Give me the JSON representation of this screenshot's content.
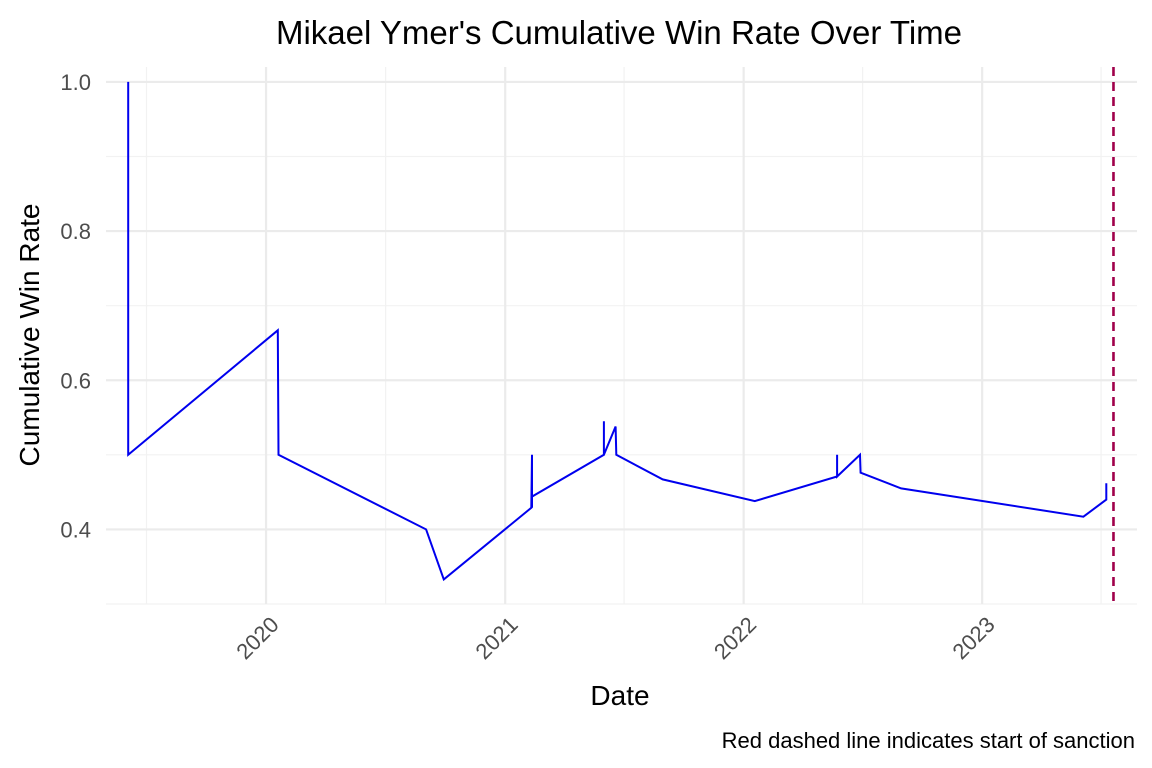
{
  "chart_data": {
    "type": "line",
    "title": "Mikael Ymer's Cumulative Win Rate Over Time",
    "xlabel": "Date",
    "ylabel": "Cumulative Win Rate",
    "caption": "Red dashed line indicates start of sanction",
    "xlim": [
      "2019-05-01",
      "2023-08-26"
    ],
    "ylim": [
      0.3,
      1.02
    ],
    "x_ticks": [
      "2020-01-01",
      "2021-01-01",
      "2022-01-01",
      "2023-01-01"
    ],
    "x_tick_labels": [
      "2020",
      "2021",
      "2022",
      "2023"
    ],
    "y_ticks": [
      0.4,
      0.6,
      0.8,
      1.0
    ],
    "y_tick_labels": [
      "0.4",
      "0.6",
      "0.8",
      "1.0"
    ],
    "grid": true,
    "legend": "none",
    "line_color": "#0000ee",
    "series": [
      {
        "x": [
          "2019-06-04",
          "2019-06-04",
          "2020-01-19",
          "2020-01-20",
          "2020-09-02",
          "2020-09-29",
          "2021-02-10",
          "2021-02-11",
          "2021-02-11",
          "2021-02-11",
          "2021-06-01",
          "2021-06-01",
          "2021-06-01",
          "2021-06-19",
          "2021-06-20",
          "2021-08-30",
          "2022-01-18",
          "2022-05-24",
          "2022-05-24",
          "2022-05-24",
          "2022-06-28",
          "2022-06-29",
          "2022-08-30",
          "2023-06-05",
          "2023-07-10",
          "2023-07-10"
        ],
        "y": [
          1.0,
          0.5,
          0.667,
          0.5,
          0.4,
          0.333,
          0.429,
          0.5,
          0.429,
          0.444,
          0.5,
          0.545,
          0.5,
          0.538,
          0.5,
          0.467,
          0.438,
          0.471,
          0.5,
          0.471,
          0.5,
          0.476,
          0.455,
          0.417,
          0.44,
          0.462
        ]
      }
    ],
    "reference_line": {
      "x": "2023-07-21",
      "color": "#a0004a",
      "style": "dashed"
    }
  }
}
